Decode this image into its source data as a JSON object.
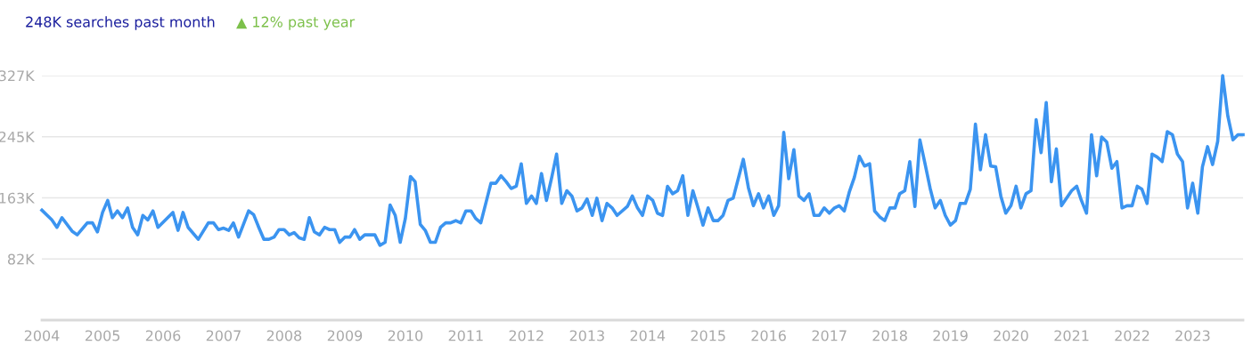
{
  "chart_data": {
    "type": "line",
    "title": "248K searches past month",
    "subtitle": "▲ 12% past year",
    "x": [
      "2004-01",
      "2004-03",
      "2004-04",
      "2004-05",
      "2004-07",
      "2004-08",
      "2004-10",
      "2004-11",
      "2004-12",
      "2005-01",
      "2005-02",
      "2005-03",
      "2005-04",
      "2005-05",
      "2005-06",
      "2005-07",
      "2005-08",
      "2005-09",
      "2005-10",
      "2005-11",
      "2005-12",
      "2006-03",
      "2006-04",
      "2006-05",
      "2006-06",
      "2006-08",
      "2006-10",
      "2006-11",
      "2006-12",
      "2007-01",
      "2007-02",
      "2007-03",
      "2007-04",
      "2007-06",
      "2007-07",
      "2007-08",
      "2007-09",
      "2007-10",
      "2007-11",
      "2007-12",
      "2008-01",
      "2008-02",
      "2008-03",
      "2008-04",
      "2008-05",
      "2008-06",
      "2008-07",
      "2008-08",
      "2008-09",
      "2008-10",
      "2008-11",
      "2008-12",
      "2009-01",
      "2009-02",
      "2009-03",
      "2009-04",
      "2009-05",
      "2009-07",
      "2009-08",
      "2009-09",
      "2009-10",
      "2009-11",
      "2009-12",
      "2010-01",
      "2010-02",
      "2010-03",
      "2010-04",
      "2010-05",
      "2010-06",
      "2010-07",
      "2010-08",
      "2010-09",
      "2010-10",
      "2010-11",
      "2010-12",
      "2011-01",
      "2011-02",
      "2011-03",
      "2011-04",
      "2011-06",
      "2011-07",
      "2011-08",
      "2011-09",
      "2011-10",
      "2011-11",
      "2011-12",
      "2012-01",
      "2012-02",
      "2012-03",
      "2012-04",
      "2012-05",
      "2012-06",
      "2012-07",
      "2012-08",
      "2012-09",
      "2012-10",
      "2012-11",
      "2012-12",
      "2013-01",
      "2013-02",
      "2013-03",
      "2013-04",
      "2013-05",
      "2013-06",
      "2013-07",
      "2013-09",
      "2013-10",
      "2013-11",
      "2013-12",
      "2014-01",
      "2014-02",
      "2014-03",
      "2014-04",
      "2014-05",
      "2014-06",
      "2014-07",
      "2014-08",
      "2014-09",
      "2014-10",
      "2014-11",
      "2014-12",
      "2015-01",
      "2015-02",
      "2015-03",
      "2015-04",
      "2015-05",
      "2015-06",
      "2015-08",
      "2015-09",
      "2015-10",
      "2015-11",
      "2015-12",
      "2016-01",
      "2016-02",
      "2016-03",
      "2016-04",
      "2016-05",
      "2016-06",
      "2016-07",
      "2016-08",
      "2016-09",
      "2016-10",
      "2016-11",
      "2016-12",
      "2017-01",
      "2017-02",
      "2017-03",
      "2017-04",
      "2017-05",
      "2017-06",
      "2017-07",
      "2017-08",
      "2017-09",
      "2017-10",
      "2017-11",
      "2017-12",
      "2018-01",
      "2018-02",
      "2018-03",
      "2018-04",
      "2018-05",
      "2018-06",
      "2018-07",
      "2018-08",
      "2018-09",
      "2018-10",
      "2018-11",
      "2018-12",
      "2019-01",
      "2019-02",
      "2019-03",
      "2019-04",
      "2019-05",
      "2019-06",
      "2019-07",
      "2019-08",
      "2019-09",
      "2019-10",
      "2019-11",
      "2019-12",
      "2020-01",
      "2020-02",
      "2020-03",
      "2020-04",
      "2020-05",
      "2020-06",
      "2020-07",
      "2020-08",
      "2020-09",
      "2020-10",
      "2020-11",
      "2020-12",
      "2021-01",
      "2021-02",
      "2021-03",
      "2021-04",
      "2021-05",
      "2021-06",
      "2021-07",
      "2021-08",
      "2021-09",
      "2021-10",
      "2021-11",
      "2021-12",
      "2022-01",
      "2022-02",
      "2022-03",
      "2022-04",
      "2022-05",
      "2022-06",
      "2022-07",
      "2022-08",
      "2022-09",
      "2022-10",
      "2022-11",
      "2022-12",
      "2023-01",
      "2023-02",
      "2023-03",
      "2023-04",
      "2023-05",
      "2023-06",
      "2023-07",
      "2023-08",
      "2023-09",
      "2023-10",
      "2023-11"
    ],
    "series": [
      {
        "color": "#3b94f0",
        "values": [
          147,
          134,
          124,
          137,
          119,
          114,
          130,
          130,
          118,
          144,
          160,
          137,
          146,
          137,
          150,
          124,
          114,
          140,
          134,
          146,
          124,
          144,
          120,
          144,
          124,
          108,
          130,
          130,
          121,
          123,
          120,
          130,
          111,
          146,
          141,
          124,
          108,
          108,
          111,
          121,
          121,
          114,
          117,
          110,
          108,
          137,
          118,
          114,
          124,
          121,
          121,
          104,
          111,
          111,
          121,
          108,
          114,
          114,
          100,
          104,
          154,
          140,
          104,
          136,
          192,
          185,
          128,
          120,
          104,
          104,
          124,
          130,
          130,
          133,
          130,
          146,
          146,
          136,
          130,
          183,
          183,
          193,
          185,
          176,
          179,
          209,
          156,
          166,
          156,
          196,
          160,
          190,
          222,
          156,
          173,
          166,
          146,
          150,
          162,
          140,
          163,
          133,
          156,
          150,
          140,
          152,
          166,
          150,
          140,
          166,
          160,
          143,
          140,
          179,
          169,
          173,
          193,
          140,
          173,
          150,
          127,
          150,
          133,
          133,
          140,
          160,
          163,
          215,
          177,
          153,
          169,
          150,
          166,
          140,
          153,
          251,
          189,
          228,
          166,
          160,
          169,
          140,
          140,
          150,
          143,
          150,
          153,
          146,
          171,
          191,
          219,
          206,
          209,
          146,
          138,
          133,
          150,
          150,
          169,
          173,
          212,
          152,
          241,
          209,
          176,
          150,
          160,
          140,
          127,
          133,
          156,
          156,
          175,
          262,
          201,
          248,
          206,
          205,
          166,
          143,
          153,
          179,
          150,
          169,
          173,
          268,
          224,
          291,
          185,
          229,
          153,
          163,
          173,
          179,
          160,
          143,
          248,
          193,
          245,
          238,
          203,
          212,
          150,
          153,
          153,
          179,
          175,
          156,
          222,
          218,
          212,
          252,
          248,
          222,
          212,
          150,
          183,
          143,
          205,
          232,
          208,
          239,
          327,
          273,
          241,
          248,
          248
        ]
      }
    ],
    "xlim": [
      "2004-01",
      "2023-11"
    ],
    "xticks": [
      "2004",
      "2005",
      "2006",
      "2007",
      "2008",
      "2009",
      "2010",
      "2011",
      "2012",
      "2013",
      "2014",
      "2015",
      "2016",
      "2017",
      "2018",
      "2019",
      "2020",
      "2021",
      "2022",
      "2023"
    ],
    "ylim": [
      0,
      327
    ],
    "yticks": [
      {
        "value": 81.75,
        "label": "82K"
      },
      {
        "value": 163.5,
        "label": "163K"
      },
      {
        "value": 245.25,
        "label": "245K"
      },
      {
        "value": 327,
        "label": "327K"
      }
    ],
    "grid": "y",
    "marker": "none",
    "line_style": "solid"
  }
}
